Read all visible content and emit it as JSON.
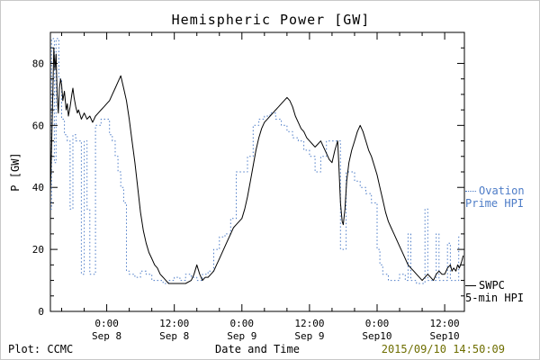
{
  "footer": {
    "left": "Plot: CCMC",
    "right": "2015/09/10 14:50:09",
    "timestamp_color": "#6e6e00"
  },
  "legend": {
    "ovation": {
      "line1": "Ovation",
      "line2": "Prime HPI",
      "color": "#4d7cc7"
    },
    "swpc": {
      "line1": "SWPC",
      "line2": "5-min HPI",
      "color": "#000000"
    }
  },
  "chart_data": {
    "type": "line",
    "title": "Hemispheric Power [GW]",
    "xlabel": "Date and Time",
    "ylabel": "P [GW]",
    "x_unit": "hours from 2015-09-08 00:00 UT",
    "xlim": [
      -10,
      63.5
    ],
    "ylim": [
      0,
      90
    ],
    "y_ticks": [
      0,
      20,
      40,
      60,
      80
    ],
    "y_minor_step": 5,
    "x_minor_step": 4,
    "grid": false,
    "legend_position": "right-outside",
    "x_ticks": [
      {
        "h": 0,
        "line1": "0:00",
        "line2": "Sep 8"
      },
      {
        "h": 12,
        "line1": "12:00",
        "line2": "Sep 8"
      },
      {
        "h": 24,
        "line1": "0:00",
        "line2": "Sep 9"
      },
      {
        "h": 36,
        "line1": "12:00",
        "line2": "Sep 9"
      },
      {
        "h": 48,
        "line1": "0:00",
        "line2": "Sep10"
      },
      {
        "h": 60,
        "line1": "12:00",
        "line2": "Sep10"
      }
    ],
    "series": [
      {
        "name": "Ovation Prime HPI",
        "color": "#4d7cc7",
        "style": "dotted-step",
        "points": [
          [
            -10,
            33
          ],
          [
            -9.8,
            88
          ],
          [
            -9.3,
            48
          ],
          [
            -9,
            88
          ],
          [
            -8.5,
            75
          ],
          [
            -8,
            62
          ],
          [
            -7.5,
            57
          ],
          [
            -7,
            55
          ],
          [
            -6.5,
            33
          ],
          [
            -6,
            57
          ],
          [
            -5.5,
            55
          ],
          [
            -5,
            55
          ],
          [
            -4.5,
            12
          ],
          [
            -4,
            55
          ],
          [
            -3.5,
            33
          ],
          [
            -3,
            12
          ],
          [
            -2.5,
            12
          ],
          [
            -2,
            60
          ],
          [
            -1,
            62
          ],
          [
            0,
            62
          ],
          [
            0.5,
            57
          ],
          [
            1,
            55
          ],
          [
            1.5,
            50
          ],
          [
            2,
            45
          ],
          [
            2.5,
            40
          ],
          [
            3,
            35
          ],
          [
            3.5,
            13
          ],
          [
            4,
            12
          ],
          [
            5,
            11
          ],
          [
            6,
            13
          ],
          [
            7,
            12
          ],
          [
            8,
            10
          ],
          [
            9,
            10
          ],
          [
            10,
            9
          ],
          [
            11,
            10
          ],
          [
            12,
            11
          ],
          [
            13,
            10
          ],
          [
            14,
            12
          ],
          [
            15,
            11
          ],
          [
            16,
            10
          ],
          [
            17,
            12
          ],
          [
            18,
            13
          ],
          [
            19,
            20
          ],
          [
            20,
            24
          ],
          [
            21,
            25
          ],
          [
            22,
            30
          ],
          [
            23,
            45
          ],
          [
            24,
            45
          ],
          [
            25,
            50
          ],
          [
            26,
            60
          ],
          [
            27,
            62
          ],
          [
            28,
            63
          ],
          [
            29,
            64
          ],
          [
            30,
            62
          ],
          [
            31,
            60
          ],
          [
            32,
            58
          ],
          [
            33,
            56
          ],
          [
            34,
            55
          ],
          [
            35,
            52
          ],
          [
            36,
            50
          ],
          [
            37,
            45
          ],
          [
            38,
            50
          ],
          [
            39,
            55
          ],
          [
            40,
            55
          ],
          [
            41,
            55
          ],
          [
            41.5,
            20
          ],
          [
            42,
            20
          ],
          [
            42.5,
            45
          ],
          [
            43,
            45
          ],
          [
            44,
            42
          ],
          [
            45,
            40
          ],
          [
            46,
            38
          ],
          [
            47,
            35
          ],
          [
            48,
            20
          ],
          [
            48.5,
            15
          ],
          [
            49,
            12
          ],
          [
            50,
            10
          ],
          [
            51,
            10
          ],
          [
            52,
            12
          ],
          [
            53,
            10
          ],
          [
            53.5,
            25
          ],
          [
            54,
            10
          ],
          [
            55,
            9
          ],
          [
            56,
            9
          ],
          [
            56.5,
            33
          ],
          [
            57,
            10
          ],
          [
            58,
            10
          ],
          [
            58.5,
            25
          ],
          [
            59,
            10
          ],
          [
            60,
            10
          ],
          [
            60.5,
            22
          ],
          [
            61,
            10
          ],
          [
            61.5,
            10
          ],
          [
            62,
            10
          ],
          [
            62.5,
            24
          ],
          [
            63,
            24
          ]
        ]
      },
      {
        "name": "SWPC 5-min HPI",
        "color": "#000000",
        "style": "solid",
        "points": [
          [
            -10,
            38
          ],
          [
            -9.7,
            60
          ],
          [
            -9.4,
            85
          ],
          [
            -9.2,
            78
          ],
          [
            -9,
            83
          ],
          [
            -8.8,
            70
          ],
          [
            -8.6,
            64
          ],
          [
            -8.4,
            72
          ],
          [
            -8.2,
            75
          ],
          [
            -8,
            73
          ],
          [
            -7.8,
            68
          ],
          [
            -7.5,
            71
          ],
          [
            -7.2,
            65
          ],
          [
            -7,
            67
          ],
          [
            -6.8,
            63
          ],
          [
            -6.5,
            66
          ],
          [
            -6.2,
            70
          ],
          [
            -6,
            72
          ],
          [
            -5.8,
            69
          ],
          [
            -5.5,
            66
          ],
          [
            -5.2,
            64
          ],
          [
            -5,
            65
          ],
          [
            -4.5,
            62
          ],
          [
            -4,
            64
          ],
          [
            -3.5,
            62
          ],
          [
            -3,
            63
          ],
          [
            -2.5,
            61
          ],
          [
            -2,
            63
          ],
          [
            -1.5,
            64
          ],
          [
            -1,
            65
          ],
          [
            -0.5,
            66
          ],
          [
            0,
            67
          ],
          [
            0.5,
            68
          ],
          [
            1,
            70
          ],
          [
            1.5,
            72
          ],
          [
            2,
            74
          ],
          [
            2.5,
            76
          ],
          [
            3,
            72
          ],
          [
            3.5,
            68
          ],
          [
            4,
            62
          ],
          [
            4.5,
            55
          ],
          [
            5,
            48
          ],
          [
            5.5,
            40
          ],
          [
            6,
            32
          ],
          [
            6.5,
            26
          ],
          [
            7,
            22
          ],
          [
            7.5,
            19
          ],
          [
            8,
            17
          ],
          [
            8.5,
            15
          ],
          [
            9,
            14
          ],
          [
            9.5,
            12
          ],
          [
            10,
            11
          ],
          [
            10.5,
            10
          ],
          [
            11,
            9
          ],
          [
            12,
            9
          ],
          [
            13,
            9
          ],
          [
            14,
            9
          ],
          [
            15,
            10
          ],
          [
            15.5,
            12
          ],
          [
            16,
            15
          ],
          [
            16.5,
            12
          ],
          [
            17,
            10
          ],
          [
            17.5,
            11
          ],
          [
            18,
            11
          ],
          [
            18.5,
            12
          ],
          [
            19,
            13
          ],
          [
            19.5,
            15
          ],
          [
            20,
            17
          ],
          [
            20.5,
            19
          ],
          [
            21,
            21
          ],
          [
            21.5,
            23
          ],
          [
            22,
            25
          ],
          [
            22.5,
            27
          ],
          [
            23,
            28
          ],
          [
            23.5,
            29
          ],
          [
            24,
            30
          ],
          [
            24.5,
            33
          ],
          [
            25,
            37
          ],
          [
            25.5,
            42
          ],
          [
            26,
            47
          ],
          [
            26.5,
            52
          ],
          [
            27,
            56
          ],
          [
            27.5,
            59
          ],
          [
            28,
            61
          ],
          [
            28.5,
            62
          ],
          [
            29,
            63
          ],
          [
            29.5,
            64
          ],
          [
            30,
            65
          ],
          [
            30.5,
            66
          ],
          [
            31,
            67
          ],
          [
            31.5,
            68
          ],
          [
            32,
            69
          ],
          [
            32.5,
            68
          ],
          [
            33,
            66
          ],
          [
            33.5,
            63
          ],
          [
            34,
            61
          ],
          [
            34.5,
            59
          ],
          [
            35,
            58
          ],
          [
            35.5,
            56
          ],
          [
            36,
            55
          ],
          [
            36.5,
            54
          ],
          [
            37,
            53
          ],
          [
            37.5,
            54
          ],
          [
            38,
            55
          ],
          [
            38.5,
            53
          ],
          [
            39,
            51
          ],
          [
            39.5,
            49
          ],
          [
            40,
            48
          ],
          [
            40.5,
            52
          ],
          [
            41,
            55
          ],
          [
            41.2,
            48
          ],
          [
            41.5,
            35
          ],
          [
            41.8,
            29
          ],
          [
            42,
            28
          ],
          [
            42.3,
            33
          ],
          [
            42.6,
            42
          ],
          [
            43,
            48
          ],
          [
            43.5,
            52
          ],
          [
            44,
            55
          ],
          [
            44.5,
            58
          ],
          [
            45,
            60
          ],
          [
            45.5,
            58
          ],
          [
            46,
            55
          ],
          [
            46.5,
            52
          ],
          [
            47,
            50
          ],
          [
            47.5,
            47
          ],
          [
            48,
            44
          ],
          [
            48.5,
            40
          ],
          [
            49,
            36
          ],
          [
            49.5,
            32
          ],
          [
            50,
            29
          ],
          [
            50.5,
            27
          ],
          [
            51,
            25
          ],
          [
            51.5,
            23
          ],
          [
            52,
            21
          ],
          [
            52.5,
            19
          ],
          [
            53,
            17
          ],
          [
            53.5,
            15
          ],
          [
            54,
            14
          ],
          [
            54.5,
            13
          ],
          [
            55,
            12
          ],
          [
            55.5,
            11
          ],
          [
            56,
            10
          ],
          [
            56.5,
            11
          ],
          [
            57,
            12
          ],
          [
            57.5,
            11
          ],
          [
            58,
            10
          ],
          [
            58.5,
            12
          ],
          [
            59,
            13
          ],
          [
            59.5,
            12
          ],
          [
            60,
            12
          ],
          [
            60.5,
            14
          ],
          [
            61,
            15
          ],
          [
            61.3,
            13
          ],
          [
            61.6,
            14
          ],
          [
            62,
            13
          ],
          [
            62.3,
            15
          ],
          [
            62.6,
            14
          ],
          [
            63,
            16
          ],
          [
            63.3,
            18
          ]
        ]
      }
    ]
  }
}
